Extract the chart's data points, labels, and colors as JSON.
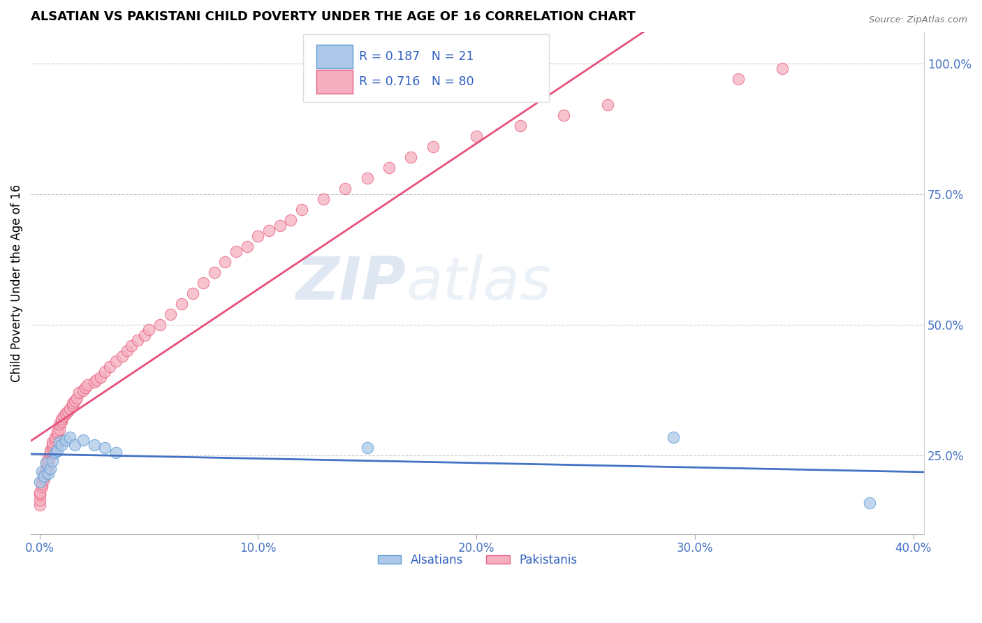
{
  "title": "ALSATIAN VS PAKISTANI CHILD POVERTY UNDER THE AGE OF 16 CORRELATION CHART",
  "source": "Source: ZipAtlas.com",
  "ylabel": "Child Poverty Under the Age of 16",
  "xlim": [
    -0.004,
    0.405
  ],
  "ylim": [
    0.1,
    1.06
  ],
  "alsatian_color": "#adc8e8",
  "pakistani_color": "#f5afc0",
  "alsatian_edge_color": "#5b9bd5",
  "pakistani_edge_color": "#e86080",
  "alsatian_line_color": "#4472c4",
  "pakistani_line_color": "#e8507a",
  "alsatian_R": 0.187,
  "alsatian_N": 21,
  "pakistani_R": 0.716,
  "pakistani_N": 80,
  "legend_text_color": "#3060c0",
  "watermark_zip": "ZIP",
  "watermark_atlas": "atlas",
  "grid_color": "#cccccc",
  "axis_tick_color": "#4472c4",
  "alsatian_points": [
    [
      0.0,
      0.2
    ],
    [
      0.001,
      0.22
    ],
    [
      0.002,
      0.21
    ],
    [
      0.003,
      0.235
    ],
    [
      0.004,
      0.215
    ],
    [
      0.005,
      0.225
    ],
    [
      0.006,
      0.24
    ],
    [
      0.007,
      0.255
    ],
    [
      0.008,
      0.26
    ],
    [
      0.009,
      0.275
    ],
    [
      0.01,
      0.27
    ],
    [
      0.012,
      0.28
    ],
    [
      0.014,
      0.285
    ],
    [
      0.016,
      0.27
    ],
    [
      0.02,
      0.28
    ],
    [
      0.025,
      0.27
    ],
    [
      0.03,
      0.265
    ],
    [
      0.035,
      0.255
    ],
    [
      0.15,
      0.265
    ],
    [
      0.29,
      0.285
    ],
    [
      0.38,
      0.16
    ]
  ],
  "pakistani_points": [
    [
      0.0,
      0.155
    ],
    [
      0.0,
      0.165
    ],
    [
      0.0,
      0.175
    ],
    [
      0.0,
      0.18
    ],
    [
      0.001,
      0.19
    ],
    [
      0.001,
      0.2
    ],
    [
      0.001,
      0.195
    ],
    [
      0.002,
      0.21
    ],
    [
      0.002,
      0.205
    ],
    [
      0.002,
      0.215
    ],
    [
      0.003,
      0.22
    ],
    [
      0.003,
      0.225
    ],
    [
      0.003,
      0.235
    ],
    [
      0.004,
      0.23
    ],
    [
      0.004,
      0.24
    ],
    [
      0.004,
      0.245
    ],
    [
      0.005,
      0.25
    ],
    [
      0.005,
      0.255
    ],
    [
      0.005,
      0.26
    ],
    [
      0.006,
      0.265
    ],
    [
      0.006,
      0.27
    ],
    [
      0.006,
      0.275
    ],
    [
      0.007,
      0.28
    ],
    [
      0.007,
      0.285
    ],
    [
      0.008,
      0.29
    ],
    [
      0.008,
      0.295
    ],
    [
      0.009,
      0.3
    ],
    [
      0.009,
      0.31
    ],
    [
      0.01,
      0.315
    ],
    [
      0.01,
      0.32
    ],
    [
      0.011,
      0.325
    ],
    [
      0.012,
      0.33
    ],
    [
      0.013,
      0.335
    ],
    [
      0.014,
      0.34
    ],
    [
      0.015,
      0.345
    ],
    [
      0.015,
      0.35
    ],
    [
      0.016,
      0.355
    ],
    [
      0.017,
      0.36
    ],
    [
      0.018,
      0.37
    ],
    [
      0.02,
      0.375
    ],
    [
      0.021,
      0.38
    ],
    [
      0.022,
      0.385
    ],
    [
      0.025,
      0.39
    ],
    [
      0.026,
      0.395
    ],
    [
      0.028,
      0.4
    ],
    [
      0.03,
      0.41
    ],
    [
      0.032,
      0.42
    ],
    [
      0.035,
      0.43
    ],
    [
      0.038,
      0.44
    ],
    [
      0.04,
      0.45
    ],
    [
      0.042,
      0.46
    ],
    [
      0.045,
      0.47
    ],
    [
      0.048,
      0.48
    ],
    [
      0.05,
      0.49
    ],
    [
      0.055,
      0.5
    ],
    [
      0.06,
      0.52
    ],
    [
      0.065,
      0.54
    ],
    [
      0.07,
      0.56
    ],
    [
      0.075,
      0.58
    ],
    [
      0.08,
      0.6
    ],
    [
      0.085,
      0.62
    ],
    [
      0.09,
      0.64
    ],
    [
      0.095,
      0.65
    ],
    [
      0.1,
      0.67
    ],
    [
      0.105,
      0.68
    ],
    [
      0.11,
      0.69
    ],
    [
      0.115,
      0.7
    ],
    [
      0.12,
      0.72
    ],
    [
      0.13,
      0.74
    ],
    [
      0.14,
      0.76
    ],
    [
      0.15,
      0.78
    ],
    [
      0.16,
      0.8
    ],
    [
      0.17,
      0.82
    ],
    [
      0.18,
      0.84
    ],
    [
      0.2,
      0.86
    ],
    [
      0.22,
      0.88
    ],
    [
      0.24,
      0.9
    ],
    [
      0.26,
      0.92
    ],
    [
      0.32,
      0.97
    ],
    [
      0.34,
      0.99
    ]
  ],
  "dashed_line_color": "#d4a0a8",
  "ytick_vals": [
    0.25,
    0.5,
    0.75,
    1.0
  ],
  "ytick_labels": [
    "25.0%",
    "50.0%",
    "75.0%",
    "100.0%"
  ],
  "xtick_vals": [
    0.0,
    0.1,
    0.2,
    0.3,
    0.4
  ],
  "xtick_labels": [
    "0.0%",
    "10.0%",
    "20.0%",
    "30.0%",
    "40.0%"
  ]
}
